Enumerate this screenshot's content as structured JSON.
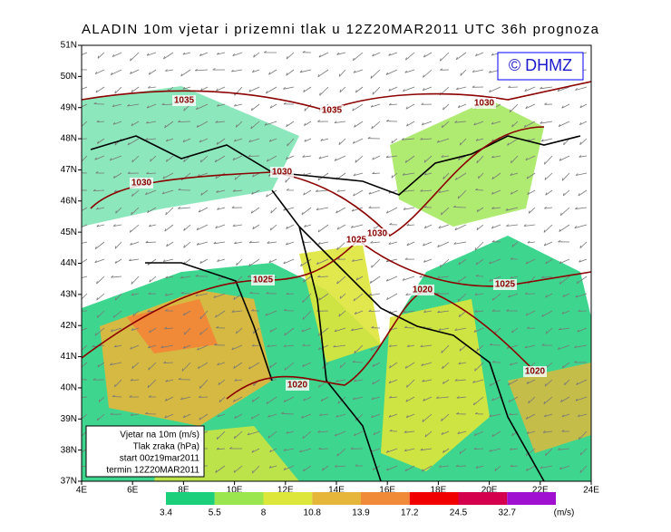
{
  "header": {
    "title": "ALADIN 10m vjetar i prizemni tlak u 12Z20MAR2011 UTC 36h prognoza",
    "logo": "© DHMZ"
  },
  "lat_labels": [
    "51N",
    "50N",
    "49N",
    "48N",
    "47N",
    "46N",
    "45N",
    "44N",
    "43N",
    "42N",
    "41N",
    "40N",
    "39N",
    "38N",
    "37N"
  ],
  "lon_labels": [
    "4E",
    "6E",
    "8E",
    "10E",
    "12E",
    "14E",
    "16E",
    "18E",
    "20E",
    "22E",
    "24E"
  ],
  "isobar_labels": [
    1035,
    1035,
    1030,
    1030,
    1030,
    1030,
    1025,
    1025,
    1020,
    1025,
    1020,
    1020
  ],
  "legend_box": [
    "Vjetar na 10m (m/s)",
    "Tlak zraka (hPa)",
    "start 00z19mar2011",
    "termin 12Z20MAR2011"
  ],
  "colorbar": {
    "labels": [
      3.4,
      5.5,
      8,
      10.8,
      13.9,
      17.2,
      24.5,
      32.7
    ],
    "unit": "(m/s)",
    "colors": [
      "#1ccf7a",
      "#9be64e",
      "#dde63a",
      "#e6b63a",
      "#f08a38",
      "#f00000",
      "#d4004e",
      "#a010d0"
    ]
  }
}
